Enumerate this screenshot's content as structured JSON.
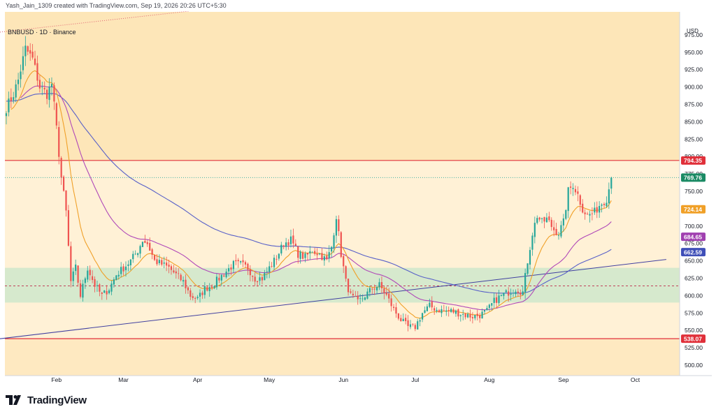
{
  "header": {
    "credit": "Yash_Jain_1309 created with TradingView.com, Sep 19, 2026 20:26 UTC+5:30",
    "symbol": "BNBUSD · 1D · Binance",
    "currency": "USD"
  },
  "footer": {
    "brand": "TradingView"
  },
  "colors": {
    "candle_up": "#26a69a",
    "candle_down": "#ef5350",
    "ma_orange": "#f0a028",
    "ma_purple": "#b048b8",
    "ma_blue": "#5860c8",
    "resistance": "#e0303a",
    "support_band": "#c8e6c9",
    "background_upper": "#fde6b8",
    "background_lower": "#fff1d6"
  },
  "chart_data": {
    "type": "candlestick",
    "y_axis": {
      "ylim": [
        485,
        1008
      ],
      "ticks": [
        500,
        525,
        550,
        575,
        600,
        625,
        650,
        675,
        700,
        725,
        750,
        775,
        800,
        825,
        850,
        875,
        900,
        925,
        950,
        975
      ],
      "tick_labels": [
        "500.00",
        "525.00",
        "550.00",
        "575.00",
        "600.00",
        "625.00",
        "650.00",
        "675.00",
        "700.00",
        "725.00",
        "750.00",
        "775.00",
        "800.00",
        "825.00",
        "850.00",
        "875.00",
        "900.00",
        "925.00",
        "950.00",
        "975.00"
      ]
    },
    "x_axis": {
      "months": [
        "Feb",
        "Mar",
        "Apr",
        "May",
        "Jun",
        "Jul",
        "Aug",
        "Sep",
        "Oct"
      ],
      "month_day_index": [
        21,
        49,
        80,
        110,
        141,
        171,
        202,
        233,
        263
      ]
    },
    "price_labels": [
      {
        "text": "794.35",
        "value": 794.35,
        "color": "#e0303a"
      },
      {
        "text": "769.76",
        "value": 769.76,
        "color": "#1a8a64"
      },
      {
        "text": "724.14",
        "value": 724.14,
        "color": "#f0a028"
      },
      {
        "text": "684.65",
        "value": 684.65,
        "color": "#a040b0"
      },
      {
        "text": "662.59",
        "value": 662.59,
        "color": "#3f4fb8"
      },
      {
        "text": "538.07",
        "value": 538.07,
        "color": "#e0303a"
      }
    ],
    "levels": {
      "resistance": 794.35,
      "support": 538.07,
      "last_price": 769.76,
      "band": [
        590,
        640
      ],
      "band_mid": 614
    },
    "trendline": {
      "start": [
        -10,
        535
      ],
      "end": [
        276,
        652
      ]
    },
    "anchors": [
      [
        0,
        870
      ],
      [
        3,
        890
      ],
      [
        5,
        910
      ],
      [
        8,
        955
      ],
      [
        11,
        940
      ],
      [
        14,
        900
      ],
      [
        17,
        890
      ],
      [
        19,
        905
      ],
      [
        21,
        840
      ],
      [
        23,
        770
      ],
      [
        25,
        720
      ],
      [
        27,
        620
      ],
      [
        29,
        640
      ],
      [
        31,
        600
      ],
      [
        34,
        640
      ],
      [
        37,
        615
      ],
      [
        40,
        600
      ],
      [
        43,
        610
      ],
      [
        46,
        630
      ],
      [
        49,
        640
      ],
      [
        52,
        650
      ],
      [
        55,
        665
      ],
      [
        57,
        680
      ],
      [
        59,
        675
      ],
      [
        62,
        650
      ],
      [
        65,
        645
      ],
      [
        68,
        640
      ],
      [
        71,
        630
      ],
      [
        74,
        620
      ],
      [
        77,
        600
      ],
      [
        80,
        595
      ],
      [
        83,
        610
      ],
      [
        86,
        615
      ],
      [
        89,
        625
      ],
      [
        92,
        635
      ],
      [
        95,
        645
      ],
      [
        98,
        645
      ],
      [
        101,
        640
      ],
      [
        104,
        625
      ],
      [
        107,
        625
      ],
      [
        110,
        640
      ],
      [
        113,
        655
      ],
      [
        116,
        675
      ],
      [
        119,
        680
      ],
      [
        122,
        660
      ],
      [
        125,
        655
      ],
      [
        128,
        665
      ],
      [
        131,
        660
      ],
      [
        134,
        650
      ],
      [
        136,
        670
      ],
      [
        138,
        715
      ],
      [
        140,
        660
      ],
      [
        142,
        620
      ],
      [
        144,
        600
      ],
      [
        147,
        590
      ],
      [
        150,
        600
      ],
      [
        153,
        610
      ],
      [
        156,
        615
      ],
      [
        159,
        600
      ],
      [
        162,
        580
      ],
      [
        165,
        565
      ],
      [
        168,
        555
      ],
      [
        171,
        555
      ],
      [
        174,
        575
      ],
      [
        177,
        585
      ],
      [
        180,
        580
      ],
      [
        183,
        578
      ],
      [
        186,
        578
      ],
      [
        189,
        575
      ],
      [
        192,
        572
      ],
      [
        195,
        570
      ],
      [
        198,
        572
      ],
      [
        201,
        578
      ],
      [
        204,
        592
      ],
      [
        207,
        600
      ],
      [
        210,
        605
      ],
      [
        213,
        610
      ],
      [
        216,
        605
      ],
      [
        218,
        650
      ],
      [
        220,
        690
      ],
      [
        222,
        715
      ],
      [
        224,
        705
      ],
      [
        226,
        710
      ],
      [
        229,
        695
      ],
      [
        231,
        690
      ],
      [
        233,
        705
      ],
      [
        235,
        750
      ],
      [
        237,
        760
      ],
      [
        239,
        745
      ],
      [
        241,
        725
      ],
      [
        243,
        715
      ],
      [
        246,
        720
      ],
      [
        248,
        730
      ],
      [
        251,
        740
      ],
      [
        253,
        768
      ]
    ]
  }
}
